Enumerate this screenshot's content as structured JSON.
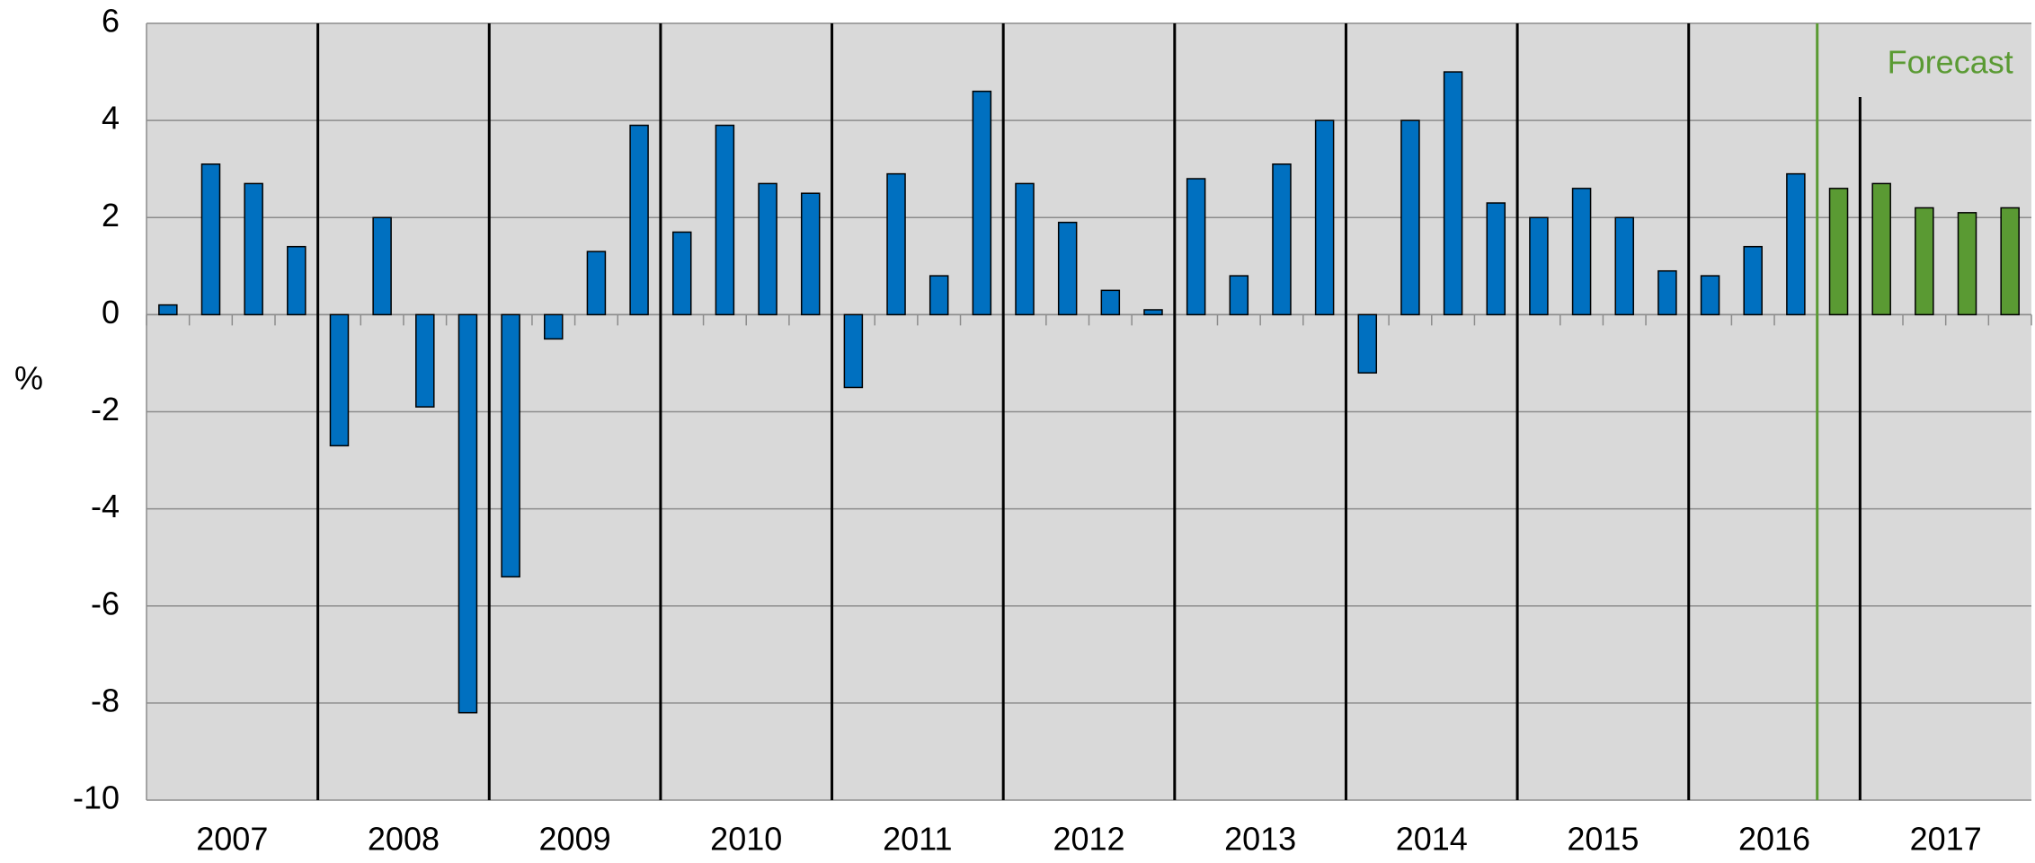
{
  "chart_data": {
    "type": "bar",
    "y_label": "%",
    "categories": [
      "2007",
      "2008",
      "2009",
      "2010",
      "2011",
      "2012",
      "2013",
      "2014",
      "2015",
      "2016",
      "2017"
    ],
    "values": [
      [
        0.2,
        3.1,
        2.7,
        1.4
      ],
      [
        -2.7,
        2.0,
        -1.9,
        -8.2
      ],
      [
        -5.4,
        -0.5,
        1.3,
        3.9
      ],
      [
        1.7,
        3.9,
        2.7,
        2.5
      ],
      [
        -1.5,
        2.9,
        0.8,
        4.6
      ],
      [
        2.7,
        1.9,
        0.5,
        0.1
      ],
      [
        2.8,
        0.8,
        3.1,
        4.0
      ],
      [
        -1.2,
        4.0,
        5.0,
        2.3
      ],
      [
        2.0,
        2.6,
        2.0,
        0.9
      ],
      [
        0.8,
        1.4,
        2.9,
        2.6
      ],
      [
        2.7,
        2.2,
        2.1,
        2.2
      ]
    ],
    "colors": [
      [
        "#0070c0",
        "#0070c0",
        "#0070c0",
        "#0070c0"
      ],
      [
        "#0070c0",
        "#0070c0",
        "#0070c0",
        "#0070c0"
      ],
      [
        "#0070c0",
        "#0070c0",
        "#0070c0",
        "#0070c0"
      ],
      [
        "#0070c0",
        "#0070c0",
        "#0070c0",
        "#0070c0"
      ],
      [
        "#0070c0",
        "#0070c0",
        "#0070c0",
        "#0070c0"
      ],
      [
        "#0070c0",
        "#0070c0",
        "#0070c0",
        "#0070c0"
      ],
      [
        "#0070c0",
        "#0070c0",
        "#0070c0",
        "#0070c0"
      ],
      [
        "#0070c0",
        "#0070c0",
        "#0070c0",
        "#0070c0"
      ],
      [
        "#0070c0",
        "#0070c0",
        "#0070c0",
        "#0070c0"
      ],
      [
        "#0070c0",
        "#0070c0",
        "#0070c0",
        "#5a9a33"
      ],
      [
        "#5a9a33",
        "#5a9a33",
        "#5a9a33",
        "#5a9a33"
      ]
    ],
    "annotation": "Forecast",
    "annotation_color": "#5a9a33",
    "ylim": [
      -10,
      6
    ],
    "yticks": [
      -10,
      -8,
      -6,
      -4,
      -2,
      0,
      2,
      4,
      6
    ],
    "grid": true
  }
}
